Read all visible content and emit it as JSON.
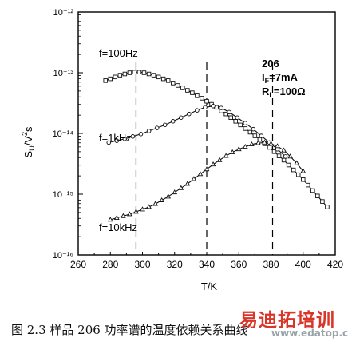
{
  "chart_data": {
    "type": "scatter",
    "xlabel": "T/K",
    "ylabel": "S_U/V²s",
    "xlim": [
      260,
      420
    ],
    "ylim_log10": [
      -16,
      -12
    ],
    "log_y": true,
    "x_ticks": [
      "260",
      "280",
      "300",
      "320",
      "340",
      "360",
      "380",
      "400",
      "420"
    ],
    "y_ticks": [
      "10⁻¹²",
      "10⁻¹³",
      "10⁻¹⁴",
      "10⁻¹⁵",
      "10⁻¹⁶"
    ],
    "series": [
      {
        "name": "f=100Hz",
        "marker": "square",
        "x": [
          277,
          280,
          283,
          286,
          289,
          292,
          295,
          298,
          301,
          304,
          307,
          310,
          313,
          316,
          319,
          322,
          325,
          328,
          331,
          334,
          337,
          340,
          343,
          346,
          349,
          352,
          355,
          358,
          361,
          364,
          367,
          370,
          373,
          376,
          379,
          382,
          385,
          388,
          391,
          394,
          397,
          400,
          403,
          406,
          409,
          412,
          415
        ],
        "y_log10": [
          -13.13,
          -13.1,
          -13.07,
          -13.04,
          -13.02,
          -13.0,
          -12.99,
          -12.99,
          -13.0,
          -13.02,
          -13.04,
          -13.07,
          -13.1,
          -13.13,
          -13.17,
          -13.21,
          -13.25,
          -13.29,
          -13.33,
          -13.38,
          -13.42,
          -13.47,
          -13.52,
          -13.57,
          -13.63,
          -13.68,
          -13.74,
          -13.8,
          -13.86,
          -13.92,
          -13.98,
          -14.04,
          -14.1,
          -14.17,
          -14.23,
          -14.3,
          -14.37,
          -14.44,
          -14.52,
          -14.6,
          -14.68,
          -14.76,
          -14.85,
          -14.94,
          -15.03,
          -15.12,
          -15.21
        ]
      },
      {
        "name": "f=1kHz",
        "marker": "circle",
        "x": [
          279,
          284,
          289,
          294,
          299,
          304,
          309,
          314,
          319,
          324,
          329,
          334,
          339,
          344,
          349,
          354,
          359,
          364,
          369,
          374,
          379,
          384,
          389
        ],
        "y_log10": [
          -14.15,
          -14.12,
          -14.09,
          -14.05,
          -14.01,
          -13.96,
          -13.91,
          -13.86,
          -13.8,
          -13.74,
          -13.68,
          -13.62,
          -13.57,
          -13.55,
          -13.58,
          -13.65,
          -13.74,
          -13.83,
          -13.93,
          -14.04,
          -14.15,
          -14.26,
          -14.38
        ]
      },
      {
        "name": "f=10kHz",
        "marker": "triangle",
        "x": [
          280,
          284,
          288,
          292,
          296,
          300,
          304,
          308,
          312,
          316,
          320,
          324,
          328,
          332,
          336,
          340,
          344,
          348,
          352,
          356,
          360,
          364,
          368,
          372,
          376,
          380,
          384,
          388,
          392,
          396,
          400
        ],
        "y_log10": [
          -15.42,
          -15.39,
          -15.36,
          -15.33,
          -15.29,
          -15.25,
          -15.21,
          -15.16,
          -15.1,
          -15.04,
          -14.97,
          -14.9,
          -14.83,
          -14.75,
          -14.67,
          -14.59,
          -14.51,
          -14.44,
          -14.37,
          -14.31,
          -14.26,
          -14.22,
          -14.18,
          -14.16,
          -14.15,
          -14.17,
          -14.21,
          -14.28,
          -14.38,
          -14.49,
          -14.62
        ]
      }
    ],
    "vlines": [
      296,
      340,
      381
    ],
    "annotations": {
      "sample": "206",
      "if": "I_F=7mA",
      "rl": "R_L=100Ω"
    }
  },
  "caption": "图 2.3  样品 206 功率谱的温度依赖关系曲线",
  "watermark": {
    "text": "易迪拓培训",
    "url": "www.edatop.com",
    "color": "#d9362a"
  }
}
